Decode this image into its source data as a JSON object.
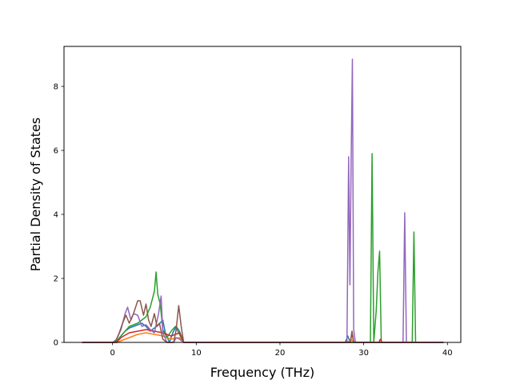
{
  "chart_data": {
    "type": "line",
    "title": "",
    "xlabel": "Frequency (THz)",
    "ylabel": "Partial Density of States",
    "xlim": [
      -5.8,
      41.6
    ],
    "ylim": [
      0,
      9.25
    ],
    "xticks": [
      0,
      10,
      20,
      30,
      40
    ],
    "yticks": [
      0,
      2,
      4,
      6,
      8
    ],
    "grid": false,
    "legend": "none",
    "series": [
      {
        "color": "#1f77b4",
        "points": [
          [
            -3.6,
            0
          ],
          [
            0,
            0
          ],
          [
            0.5,
            0.05
          ],
          [
            1,
            0.2
          ],
          [
            1.5,
            0.35
          ],
          [
            2,
            0.45
          ],
          [
            2.5,
            0.5
          ],
          [
            3,
            0.55
          ],
          [
            3.5,
            0.6
          ],
          [
            4,
            0.5
          ],
          [
            4.5,
            0.35
          ],
          [
            5,
            0.45
          ],
          [
            5.5,
            0.55
          ],
          [
            6,
            0.7
          ],
          [
            6.3,
            0.3
          ],
          [
            6.8,
            0
          ],
          [
            7.2,
            0.3
          ],
          [
            7.6,
            0.5
          ],
          [
            8,
            0.35
          ],
          [
            8.5,
            0
          ],
          [
            27.8,
            0
          ],
          [
            28.1,
            0.2
          ],
          [
            28.4,
            0
          ],
          [
            39.5,
            0
          ]
        ]
      },
      {
        "color": "#ff7f0e",
        "points": [
          [
            -3.6,
            0
          ],
          [
            0.6,
            0
          ],
          [
            1,
            0.05
          ],
          [
            2,
            0.15
          ],
          [
            3,
            0.25
          ],
          [
            4,
            0.3
          ],
          [
            5,
            0.25
          ],
          [
            6,
            0.2
          ],
          [
            7,
            0.1
          ],
          [
            8,
            0.15
          ],
          [
            8.5,
            0
          ],
          [
            28,
            0
          ],
          [
            28.5,
            0.08
          ],
          [
            29,
            0
          ],
          [
            39.5,
            0
          ]
        ]
      },
      {
        "color": "#2ca02c",
        "points": [
          [
            -3.6,
            0
          ],
          [
            0.4,
            0
          ],
          [
            1,
            0.2
          ],
          [
            2,
            0.5
          ],
          [
            3,
            0.6
          ],
          [
            3.5,
            0.7
          ],
          [
            4,
            0.8
          ],
          [
            4.5,
            1.1
          ],
          [
            5,
            1.6
          ],
          [
            5.2,
            2.2
          ],
          [
            5.4,
            1.5
          ],
          [
            5.7,
            1.2
          ],
          [
            6,
            0.4
          ],
          [
            6.5,
            0.15
          ],
          [
            7,
            0.35
          ],
          [
            7.5,
            0.5
          ],
          [
            8,
            0.25
          ],
          [
            8.5,
            0
          ],
          [
            30.8,
            0
          ],
          [
            31,
            5.9
          ],
          [
            31.2,
            0
          ],
          [
            31.5,
            1.0
          ],
          [
            31.7,
            2.2
          ],
          [
            31.9,
            2.85
          ],
          [
            32.1,
            0
          ],
          [
            35.8,
            0
          ],
          [
            36,
            3.45
          ],
          [
            36.2,
            0
          ],
          [
            39.5,
            0
          ]
        ]
      },
      {
        "color": "#d62728",
        "points": [
          [
            -3.6,
            0
          ],
          [
            0.5,
            0
          ],
          [
            1,
            0.15
          ],
          [
            2,
            0.3
          ],
          [
            3,
            0.35
          ],
          [
            4,
            0.4
          ],
          [
            5,
            0.35
          ],
          [
            6,
            0.3
          ],
          [
            7,
            0.2
          ],
          [
            8,
            0.3
          ],
          [
            8.5,
            0
          ],
          [
            28.4,
            0
          ],
          [
            28.6,
            0.3
          ],
          [
            28.8,
            0
          ],
          [
            31.8,
            0
          ],
          [
            32,
            0.1
          ],
          [
            32.2,
            0
          ],
          [
            39.5,
            0
          ]
        ]
      },
      {
        "color": "#9467bd",
        "points": [
          [
            -3.6,
            0
          ],
          [
            0,
            0
          ],
          [
            0.5,
            0.1
          ],
          [
            1,
            0.4
          ],
          [
            1.5,
            0.9
          ],
          [
            1.8,
            1.1
          ],
          [
            2.2,
            0.7
          ],
          [
            2.5,
            0.9
          ],
          [
            3,
            0.85
          ],
          [
            3.5,
            0.5
          ],
          [
            4,
            0.55
          ],
          [
            4.5,
            0.4
          ],
          [
            5,
            0.3
          ],
          [
            5.5,
            0.9
          ],
          [
            5.8,
            1.45
          ],
          [
            6,
            0.3
          ],
          [
            6.5,
            0
          ],
          [
            7.3,
            0
          ],
          [
            7.6,
            0.15
          ],
          [
            8,
            0.1
          ],
          [
            8.5,
            0
          ],
          [
            28,
            0
          ],
          [
            28.2,
            5.8
          ],
          [
            28.35,
            1.8
          ],
          [
            28.5,
            5.6
          ],
          [
            28.65,
            8.85
          ],
          [
            28.8,
            0.4
          ],
          [
            29,
            0
          ],
          [
            34.7,
            0
          ],
          [
            34.9,
            4.05
          ],
          [
            35.1,
            0
          ],
          [
            39.5,
            0
          ]
        ]
      },
      {
        "color": "#8c564b",
        "points": [
          [
            -3.6,
            0
          ],
          [
            0.3,
            0
          ],
          [
            0.8,
            0.3
          ],
          [
            1.2,
            0.6
          ],
          [
            1.6,
            0.85
          ],
          [
            2,
            0.6
          ],
          [
            2.5,
            0.9
          ],
          [
            3,
            1.3
          ],
          [
            3.3,
            1.3
          ],
          [
            3.7,
            0.85
          ],
          [
            4,
            1.2
          ],
          [
            4.3,
            0.7
          ],
          [
            4.6,
            0.5
          ],
          [
            5,
            0.9
          ],
          [
            5.3,
            0.5
          ],
          [
            5.6,
            0.6
          ],
          [
            6,
            0.1
          ],
          [
            6.5,
            0
          ],
          [
            7.3,
            0
          ],
          [
            7.6,
            0.4
          ],
          [
            7.9,
            1.15
          ],
          [
            8.2,
            0.5
          ],
          [
            8.5,
            0
          ],
          [
            28.4,
            0
          ],
          [
            28.6,
            0.35
          ],
          [
            28.8,
            0
          ],
          [
            39.5,
            0
          ]
        ]
      }
    ]
  }
}
